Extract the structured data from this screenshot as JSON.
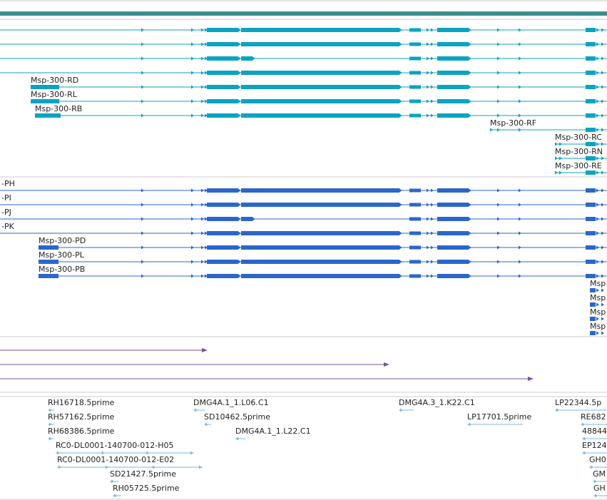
{
  "colors": {
    "scale_bar": "#3d8f8c",
    "track_border": "#cccccc",
    "transcript_teal": "#0aa3c2",
    "transcript_blue": "#2b66cc",
    "insertion_purple": "#7a4fa0",
    "est_light_blue": "#7fb6dc"
  },
  "tracks": {
    "transcripts_teal": {
      "rows": [
        {
          "label": ""
        },
        {
          "label": ""
        },
        {
          "label": ""
        },
        {
          "label": ""
        },
        {
          "label": "Msp-300-RD"
        },
        {
          "label": "Msp-300-RL"
        },
        {
          "label": "Msp-300-RB"
        },
        {
          "label": "Msp-300-RF"
        },
        {
          "label": "Msp-300-RC"
        },
        {
          "label": "Msp-300-RN"
        },
        {
          "label": "Msp-300-RE"
        }
      ]
    },
    "transcripts_blue": {
      "rows": [
        {
          "label": "-PH"
        },
        {
          "label": "-PI"
        },
        {
          "label": "-PJ"
        },
        {
          "label": "-PK"
        },
        {
          "label": "Msp-300-PD"
        },
        {
          "label": "Msp-300-PL"
        },
        {
          "label": "Msp-300-PB"
        },
        {
          "label": "Msp"
        },
        {
          "label": "Msp"
        },
        {
          "label": "Msp"
        },
        {
          "label": "Msp"
        }
      ]
    },
    "est_labels": [
      "RH16718.5prime",
      "RH57162.5prime",
      "RH68386.5prime",
      "RC0-DL0001-140700-012-H05",
      "RC0-DL0001-140700-012-E02",
      "SD21427.5prime",
      "RH05725.5prime",
      "DMG4A.1_1.L06.C1",
      "SD10462.5prime",
      "DMG4A.1_1.L22.C1",
      "DMG4A.3_1.K22.C1",
      "LP17701.5prime",
      "LP22344.5p",
      "RE682",
      "48844",
      "EP124",
      "GH0",
      "GM",
      "GH"
    ]
  }
}
